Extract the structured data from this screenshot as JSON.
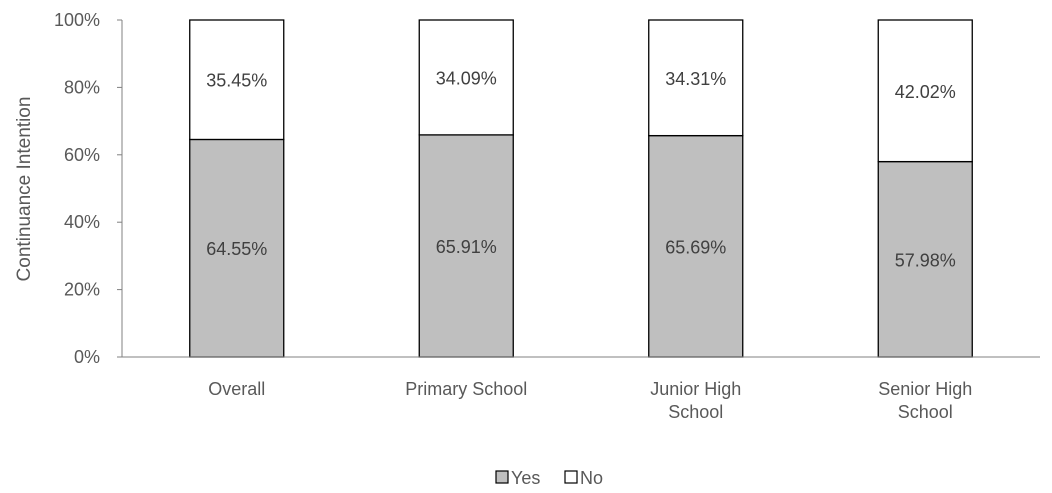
{
  "chart_data": {
    "type": "bar",
    "stacked": true,
    "categories": [
      [
        "Overall"
      ],
      [
        "Primary School"
      ],
      [
        "Junior High",
        "School"
      ],
      [
        "Senior High",
        "School"
      ]
    ],
    "series": [
      {
        "name": "Yes",
        "values": [
          64.55,
          65.91,
          65.69,
          57.98
        ],
        "labels": [
          "64.55%",
          "65.91%",
          "65.69%",
          "57.98%"
        ],
        "color": "#bfbfbf"
      },
      {
        "name": "No",
        "values": [
          35.45,
          34.09,
          34.31,
          42.02
        ],
        "labels": [
          "35.45%",
          "34.09%",
          "34.31%",
          "42.02%"
        ],
        "color": "#ffffff"
      }
    ],
    "xlabel": "",
    "ylabel": "Continuance Intention",
    "ylim": [
      0,
      100
    ],
    "yticks": [
      0,
      20,
      40,
      60,
      80,
      100
    ],
    "ytick_labels": [
      "0%",
      "20%",
      "40%",
      "60%",
      "80%",
      "100%"
    ],
    "grid": false,
    "legend": "bottom-center"
  }
}
